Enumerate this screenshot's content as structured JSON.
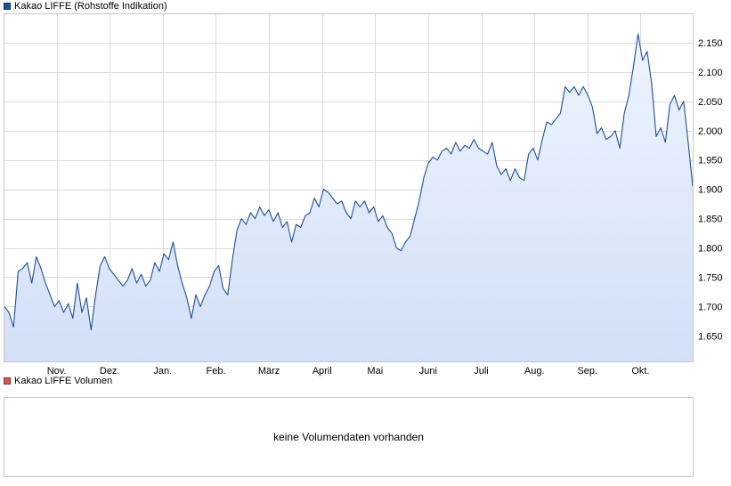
{
  "legend": {
    "price_label": "Kakao LIFFE (Rohstoffe Indikation)",
    "volume_label": "Kakao LIFFE Volumen",
    "price_color": "#1f4e9c",
    "volume_color": "#d05a4e"
  },
  "volume_panel": {
    "message": "keine Volumendaten vorhanden"
  },
  "chart_data": {
    "type": "area",
    "title": "",
    "xlabel": "",
    "ylabel": "",
    "x_tick_labels": [
      "Nov.",
      "Dez.",
      "Jan.",
      "Feb.",
      "März",
      "April",
      "Mai",
      "Juni",
      "Juli",
      "Aug.",
      "Sep.",
      "Okt."
    ],
    "y_ticks": [
      1650,
      1700,
      1750,
      1800,
      1850,
      1900,
      1950,
      2000,
      2050,
      2100,
      2150
    ],
    "y_tick_labels": [
      "1.650",
      "1.700",
      "1.750",
      "1.800",
      "1.850",
      "1.900",
      "1.950",
      "2.000",
      "2.050",
      "2.100",
      "2.150"
    ],
    "ylim": [
      1605,
      2200
    ],
    "grid": true,
    "line_color": "#1f4e9c",
    "fill_color": "#d2e0f7",
    "series": [
      {
        "values": [
          1700,
          1690,
          1665,
          1760,
          1765,
          1775,
          1740,
          1785,
          1765,
          1740,
          1720,
          1700,
          1710,
          1690,
          1705,
          1680,
          1740,
          1690,
          1715,
          1660,
          1720,
          1770,
          1785,
          1765,
          1755,
          1745,
          1735,
          1745,
          1765,
          1740,
          1755,
          1735,
          1745,
          1775,
          1760,
          1790,
          1780,
          1810,
          1770,
          1740,
          1715,
          1680,
          1720,
          1700,
          1720,
          1735,
          1760,
          1770,
          1730,
          1720,
          1780,
          1830,
          1850,
          1840,
          1860,
          1850,
          1870,
          1855,
          1865,
          1845,
          1860,
          1835,
          1845,
          1810,
          1840,
          1835,
          1855,
          1860,
          1885,
          1870,
          1900,
          1895,
          1885,
          1875,
          1880,
          1860,
          1850,
          1880,
          1870,
          1880,
          1860,
          1870,
          1845,
          1855,
          1835,
          1825,
          1800,
          1795,
          1810,
          1820,
          1850,
          1880,
          1920,
          1945,
          1955,
          1950,
          1965,
          1970,
          1960,
          1980,
          1965,
          1975,
          1970,
          1985,
          1970,
          1965,
          1960,
          1980,
          1940,
          1925,
          1935,
          1915,
          1935,
          1920,
          1915,
          1960,
          1970,
          1950,
          1985,
          2015,
          2010,
          2020,
          2030,
          2075,
          2065,
          2075,
          2060,
          2075,
          2060,
          2040,
          1995,
          2005,
          1985,
          1990,
          2000,
          1970,
          2030,
          2060,
          2110,
          2165,
          2120,
          2135,
          2080,
          1990,
          2005,
          1980,
          2045,
          2060,
          2035,
          2050,
          1980,
          1905
        ]
      }
    ]
  }
}
